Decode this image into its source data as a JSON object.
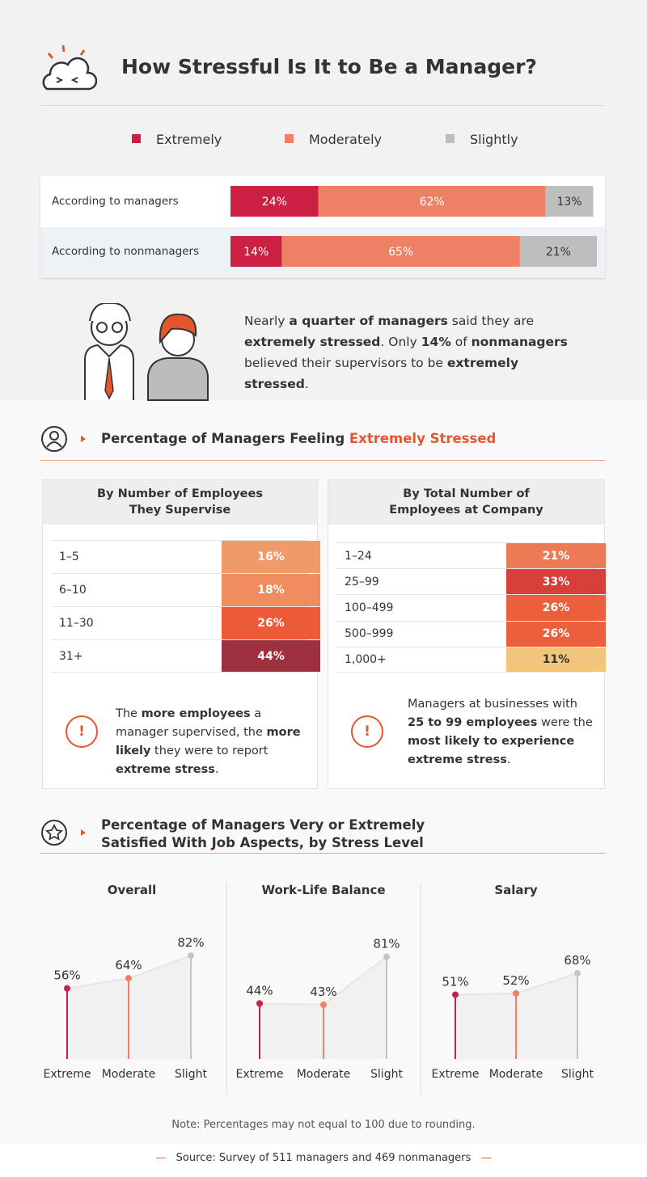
{
  "header": {
    "title": "How Stressful Is It to Be a Manager?"
  },
  "chart_data": [
    {
      "type": "stacked-bar",
      "categories": [
        "According to managers",
        "According to nonmanagers"
      ],
      "series": [
        {
          "name": "Extremely",
          "color": "#cc1f44",
          "values": [
            24,
            14
          ],
          "value_labels": [
            "24%",
            "14%"
          ]
        },
        {
          "name": "Moderately",
          "color": "#ee8066",
          "values": [
            62,
            65
          ],
          "value_labels": [
            "62%",
            "65%"
          ]
        },
        {
          "name": "Slightly",
          "color": "#bebebe",
          "values": [
            13,
            21
          ],
          "value_labels": [
            "13%",
            "21%"
          ]
        }
      ]
    },
    {
      "type": "lollipop",
      "title": "Overall",
      "categories": [
        "Extreme",
        "Moderate",
        "Slight"
      ],
      "values": [
        56,
        64,
        82
      ],
      "value_labels": [
        "56%",
        "64%",
        "82%"
      ],
      "colors": [
        "#cc1f44",
        "#ee8066",
        "#c4c4c4"
      ]
    },
    {
      "type": "lollipop",
      "title": "Work-Life Balance",
      "categories": [
        "Extreme",
        "Moderate",
        "Slight"
      ],
      "values": [
        44,
        43,
        81
      ],
      "value_labels": [
        "44%",
        "43%",
        "81%"
      ],
      "colors": [
        "#cc1f44",
        "#ee8066",
        "#c4c4c4"
      ]
    },
    {
      "type": "lollipop",
      "title": "Salary",
      "categories": [
        "Extreme",
        "Moderate",
        "Slight"
      ],
      "values": [
        51,
        52,
        68
      ],
      "value_labels": [
        "51%",
        "52%",
        "68%"
      ],
      "colors": [
        "#cc1f44",
        "#ee8066",
        "#c4c4c4"
      ]
    }
  ],
  "summary": {
    "parts": [
      {
        "text": "Nearly "
      },
      {
        "text": "a quarter of managers",
        "bold": true
      },
      {
        "text": " said they are "
      },
      {
        "text": "extremely stressed",
        "bold": true
      },
      {
        "text": ". Only "
      },
      {
        "text": "14%",
        "bold": true
      },
      {
        "text": " of "
      },
      {
        "text": "nonmanagers",
        "bold": true
      },
      {
        "text": " believed their supervisors to be "
      },
      {
        "text": "extremely stressed",
        "bold": true
      },
      {
        "text": "."
      }
    ]
  },
  "section1": {
    "title": "Percentage of Managers Feeling ",
    "highlight": "Extremely Stressed"
  },
  "tables": [
    {
      "title": [
        "By Number of Employees",
        "They Supervise"
      ],
      "rows": [
        [
          "1–5",
          "16%"
        ],
        [
          "6–10",
          "18%"
        ],
        [
          "11–30",
          "26%"
        ],
        [
          "31+",
          "44%"
        ]
      ],
      "colors": [
        "#f09a6a",
        "#f08c5e",
        "#ec5a3a",
        "#9e3140"
      ],
      "note": [
        {
          "text": "The "
        },
        {
          "text": "more employees",
          "bold": true
        },
        {
          "text": " a manager supervised, the "
        },
        {
          "text": "more likely",
          "bold": true
        },
        {
          "text": " they were to report "
        },
        {
          "text": "extreme stress",
          "bold": true
        },
        {
          "text": "."
        }
      ]
    },
    {
      "title": [
        "By Total Number of",
        "Employees at Company"
      ],
      "rows": [
        [
          "1–24",
          "21%"
        ],
        [
          "25–99",
          "33%"
        ],
        [
          "100–499",
          "26%"
        ],
        [
          "500–999",
          "26%"
        ],
        [
          "1,000+",
          "11%"
        ]
      ],
      "colors": [
        "#ee7a55",
        "#d93e3a",
        "#ec5f3d",
        "#ec5f3d",
        "#f2c57c"
      ],
      "note": [
        {
          "text": "Managers at businesses with "
        },
        {
          "text": "25 to 99 employees",
          "bold": true
        },
        {
          "text": " were the "
        },
        {
          "text": "most likely to experience extreme stress",
          "bold": true
        },
        {
          "text": "."
        }
      ]
    }
  ],
  "section2": {
    "title": "Percentage of Managers Very or Extremely Satisfied With Job Aspects, by Stress Level"
  },
  "footer": {
    "note": "Note: Percentages may not equal to 100 due to rounding.",
    "source": "Source: Survey of 511 managers and 469 nonmanagers"
  }
}
